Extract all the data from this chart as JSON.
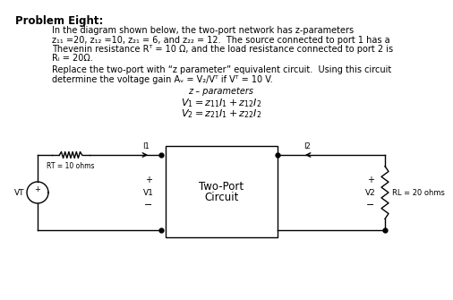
{
  "title": "Problem Eight:",
  "bg_color": "#ffffff",
  "text_color": "#000000",
  "line1": "In the diagram shown below, the two-port network has z-parameters",
  "line2": "z₁₁ =20, z₁₂ =10, z₂₁ = 6, and z₂₂ = 12.  The source connected to port 1 has a",
  "line3": "Thevenin resistance Rᵀ = 10 Ω, and the load resistance connected to port 2 is",
  "line4": "Rₗ = 20Ω.",
  "line5": "Replace the two-port with “z parameter” equivalent circuit.  Using this circuit",
  "line6": "determine the voltage gain Aᵥ = V₂/Vᵀ if Vᵀ = 10 V.",
  "zpar_title": "z – parameters",
  "eq1": "$V_1 = z_{11}I_1 + z_{12}I_2$",
  "eq2": "$V_2 = z_{21}I_1 + z_{22}I_2$",
  "circuit_labels": {
    "vt": "VT",
    "rt": "RT = 10 ohms",
    "i1": "I1",
    "i2": "I2",
    "v1": "V1",
    "v2": "V2",
    "box_line1": "Two-Port",
    "box_line2": "Circuit",
    "rl": "RL = 20 ohms"
  }
}
